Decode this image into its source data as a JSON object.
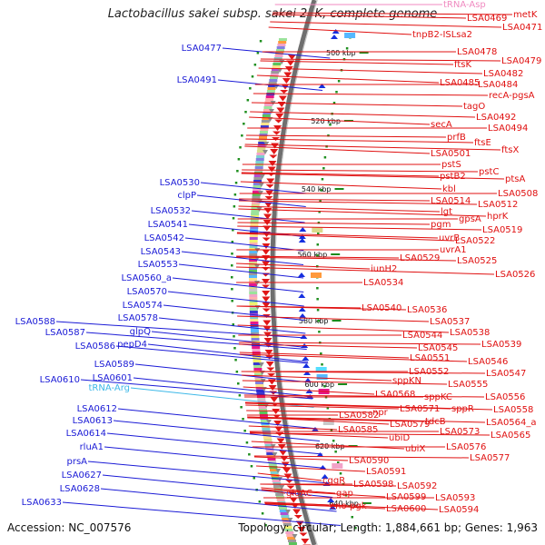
{
  "title": "Lactobacillus sakei subsp. sakei 23K, complete genome",
  "footer": {
    "accession": "Accession: NC_007576",
    "summary": "Topology: circular; Length: 1,884,661 bp; Genes: 1,963"
  },
  "colors": {
    "left_labels": "#1a1ad6",
    "right_labels": "#e01010",
    "trna_labels": "#3db8e8",
    "backbone": "#7a7a7a",
    "minus_arrows": "#1530e0",
    "plus_arrows": "#e01818"
  },
  "ticks": [
    "500 kbp",
    "520 kbp",
    "540 kbp",
    "560 kbp",
    "580 kbp",
    "600 kbp",
    "620 kbp",
    "640 kbp"
  ],
  "left_labels": [
    {
      "text": "LSA0477",
      "color": "blue"
    },
    {
      "text": "LSA0491",
      "color": "blue"
    },
    {
      "text": "LSA0530",
      "color": "blue"
    },
    {
      "text": "clpP",
      "color": "blue"
    },
    {
      "text": "LSA0532",
      "color": "blue"
    },
    {
      "text": "LSA0541",
      "color": "blue"
    },
    {
      "text": "LSA0542",
      "color": "blue"
    },
    {
      "text": "LSA0543",
      "color": "blue"
    },
    {
      "text": "LSA0553",
      "color": "blue"
    },
    {
      "text": "LSA0560_a",
      "color": "blue"
    },
    {
      "text": "LSA0570",
      "color": "blue"
    },
    {
      "text": "LSA0574",
      "color": "blue"
    },
    {
      "text": "LSA0578",
      "color": "blue"
    },
    {
      "text": "glpQ",
      "color": "blue"
    },
    {
      "text": "LSA0588",
      "color": "blue"
    },
    {
      "text": "LSA0587",
      "color": "blue"
    },
    {
      "text": "LSA0586",
      "color": "blue"
    },
    {
      "text": "pepD4",
      "color": "blue"
    },
    {
      "text": "LSA0589",
      "color": "blue"
    },
    {
      "text": "LSA0601",
      "color": "blue"
    },
    {
      "text": "LSA0610",
      "color": "blue"
    },
    {
      "text": "tRNA-Arg",
      "color": "cyan"
    },
    {
      "text": "LSA0612",
      "color": "blue"
    },
    {
      "text": "LSA0613",
      "color": "blue"
    },
    {
      "text": "LSA0614",
      "color": "blue"
    },
    {
      "text": "rluA1",
      "color": "blue"
    },
    {
      "text": "prsA",
      "color": "blue"
    },
    {
      "text": "LSA0627",
      "color": "blue"
    },
    {
      "text": "LSA0628",
      "color": "blue"
    },
    {
      "text": "LSA0633",
      "color": "blue"
    }
  ],
  "right_labels": [
    {
      "text": "tRNA-Asp",
      "color": "pink"
    },
    {
      "text": "metK"
    },
    {
      "text": "LSA0469"
    },
    {
      "text": "LSA0471"
    },
    {
      "text": "tnpB2-ISLsa2"
    },
    {
      "text": "LSA0478"
    },
    {
      "text": "LSA0479"
    },
    {
      "text": "ftsK"
    },
    {
      "text": "LSA0482"
    },
    {
      "text": "LSA0485"
    },
    {
      "text": "LSA0484"
    },
    {
      "text": "recA-pgsA"
    },
    {
      "text": "tagO"
    },
    {
      "text": "LSA0492"
    },
    {
      "text": "secA"
    },
    {
      "text": "LSA0494"
    },
    {
      "text": "prfB"
    },
    {
      "text": "ftsE"
    },
    {
      "text": "ftsX"
    },
    {
      "text": "LSA0501"
    },
    {
      "text": "pstS"
    },
    {
      "text": "pstC"
    },
    {
      "text": "pstB2"
    },
    {
      "text": "ptsA"
    },
    {
      "text": "kbl"
    },
    {
      "text": "LSA0508"
    },
    {
      "text": "LSA0514"
    },
    {
      "text": "LSA0512"
    },
    {
      "text": "lgt"
    },
    {
      "text": "hprK"
    },
    {
      "text": "gpsA"
    },
    {
      "text": "pgm"
    },
    {
      "text": "LSA0519"
    },
    {
      "text": "uvrB"
    },
    {
      "text": "LSA0522"
    },
    {
      "text": "uvrA1"
    },
    {
      "text": "LSA0529"
    },
    {
      "text": "LSA0525"
    },
    {
      "text": "iunH2"
    },
    {
      "text": "LSA0526"
    },
    {
      "text": "LSA0534"
    },
    {
      "text": "LSA0540"
    },
    {
      "text": "LSA0536"
    },
    {
      "text": "LSA0537"
    },
    {
      "text": "LSA0538"
    },
    {
      "text": "LSA0544"
    },
    {
      "text": "LSA0539"
    },
    {
      "text": "LSA0545"
    },
    {
      "text": "LSA0551"
    },
    {
      "text": "LSA0546"
    },
    {
      "text": "LSA0552"
    },
    {
      "text": "LSA0547"
    },
    {
      "text": "LSA0555"
    },
    {
      "text": "sppKN"
    },
    {
      "text": "LSA0568"
    },
    {
      "text": "sppKC"
    },
    {
      "text": "LSA0556"
    },
    {
      "text": "LSA0571"
    },
    {
      "text": "sppR"
    },
    {
      "text": "LSA0558"
    },
    {
      "text": "LSA0582"
    },
    {
      "text": "npr"
    },
    {
      "text": "tdcB"
    },
    {
      "text": "LSA0564_a"
    },
    {
      "text": "LSA0579"
    },
    {
      "text": "LSA0573"
    },
    {
      "text": "LSA0565"
    },
    {
      "text": "LSA0585"
    },
    {
      "text": "ubiD"
    },
    {
      "text": "ubiX"
    },
    {
      "text": "LSA0576"
    },
    {
      "text": "LSA0577"
    },
    {
      "text": "LSA0590"
    },
    {
      "text": "LSA0591"
    },
    {
      "text": "cggR"
    },
    {
      "text": "LSA0598"
    },
    {
      "text": "LSA0592"
    },
    {
      "text": "gloAC"
    },
    {
      "text": "gap"
    },
    {
      "text": "LSA0599"
    },
    {
      "text": "LSA0593"
    },
    {
      "text": "eno"
    },
    {
      "text": "pgk"
    },
    {
      "text": "LSA0600"
    },
    {
      "text": "LSA0594"
    }
  ]
}
